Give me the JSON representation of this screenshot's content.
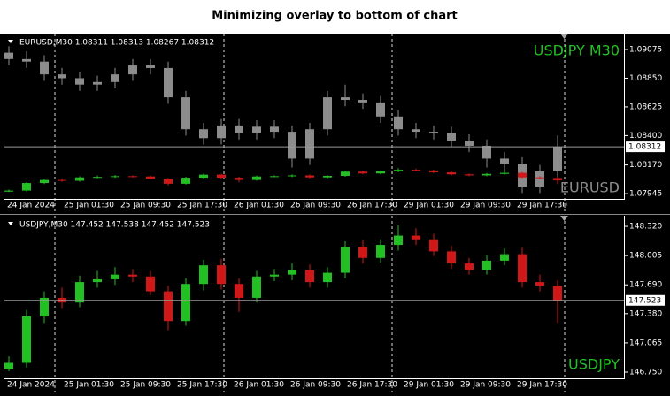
{
  "title": "Minimizing overlay to bottom of chart",
  "chart_data": [
    {
      "type": "candlestick",
      "header": "EURUSD,M30  1.08311 1.08313 1.08267 1.08312",
      "ylim": [
        1.07904,
        1.09172
      ],
      "y2lim": [
        146.3,
        157.0
      ],
      "yticks": [
        1.09075,
        {
          "value": 1.0885,
          "label": "1.08850"
        },
        1.08625,
        {
          "value": 1.084,
          "label": "1.08400"
        },
        {
          "value": 1.0817,
          "label": "1.08170"
        },
        1.07945
      ],
      "current": 1.08312,
      "dates": [
        "24 Jan 2024",
        "25 Jan 01:30",
        "25 Jan 09:30",
        "25 Jan 17:30",
        "26 Jan 01:30",
        "26 Jan 09:30",
        "26 Jan 17:30",
        "29 Jan 01:30",
        "29 Jan 09:30",
        "29 Jan 17:30"
      ],
      "series": [
        {
          "name": "EURUSD",
          "color": "#8c8c8c",
          "up_color": "#8c8c8c",
          "down_color": "#8c8c8c",
          "open": [
            1.0905,
            1.09,
            1.0898,
            1.0888,
            1.0885,
            1.088,
            1.0882,
            1.0888,
            1.0895,
            1.0893,
            1.087,
            1.0845,
            1.0838,
            1.0848,
            1.0842,
            1.0847,
            1.0843,
            1.0822,
            1.0845,
            1.087,
            1.0868,
            1.0866,
            1.0855,
            1.0845,
            1.0843,
            1.0842,
            1.0836,
            1.0832,
            1.0822,
            1.0818,
            1.08,
            1.0812
          ],
          "high": [
            1.091,
            1.0906,
            1.0903,
            1.0893,
            1.089,
            1.0887,
            1.0893,
            1.09,
            1.09,
            1.0898,
            1.0875,
            1.085,
            1.0853,
            1.0853,
            1.0852,
            1.0852,
            1.0848,
            1.085,
            1.0875,
            1.088,
            1.0873,
            1.0871,
            1.086,
            1.085,
            1.0848,
            1.0847,
            1.0841,
            1.0837,
            1.0827,
            1.0823,
            1.0817,
            1.084
          ],
          "low": [
            1.0895,
            1.0893,
            1.0883,
            1.088,
            1.0875,
            1.0875,
            1.0877,
            1.0883,
            1.0888,
            1.0865,
            1.084,
            1.0833,
            1.0833,
            1.0837,
            1.0837,
            1.0838,
            1.0815,
            1.0817,
            1.084,
            1.0863,
            1.0861,
            1.085,
            1.084,
            1.0838,
            1.0837,
            1.0831,
            1.0827,
            1.0815,
            1.081,
            1.0795,
            1.0795,
            1.0807
          ],
          "close": [
            1.09,
            1.0898,
            1.0888,
            1.0885,
            1.088,
            1.0882,
            1.0888,
            1.0895,
            1.0893,
            1.087,
            1.0845,
            1.0838,
            1.0848,
            1.0842,
            1.0847,
            1.0843,
            1.0822,
            1.0845,
            1.087,
            1.0868,
            1.0866,
            1.0855,
            1.0845,
            1.0843,
            1.0842,
            1.0836,
            1.0832,
            1.0822,
            1.0818,
            1.08,
            1.0812,
            1.08312
          ]
        },
        {
          "name": "USDJPY M30",
          "axis": "y2",
          "color": "#22c022",
          "up_color": "#22c022",
          "down_color": "#d01818",
          "open": [
            146.78,
            146.85,
            147.35,
            147.55,
            147.5,
            147.72,
            147.75,
            147.8,
            147.78,
            147.62,
            147.3,
            147.7,
            147.9,
            147.7,
            147.55,
            147.78,
            147.8,
            147.85,
            147.72,
            147.82,
            148.1,
            147.98,
            148.12,
            148.22,
            148.18,
            148.05,
            147.92,
            147.85,
            147.95,
            148.02,
            147.72,
            147.68
          ],
          "high": [
            146.92,
            147.42,
            147.62,
            147.66,
            147.79,
            147.84,
            147.88,
            147.86,
            147.84,
            147.68,
            147.76,
            147.96,
            147.97,
            147.76,
            147.84,
            147.86,
            147.92,
            147.91,
            147.88,
            148.16,
            148.17,
            148.18,
            148.33,
            148.3,
            148.24,
            148.11,
            147.98,
            148.01,
            148.08,
            148.09,
            147.8,
            147.74
          ],
          "low": [
            146.76,
            146.8,
            147.28,
            147.43,
            147.45,
            147.66,
            147.69,
            147.72,
            147.58,
            147.2,
            147.25,
            147.63,
            147.64,
            147.4,
            147.5,
            147.73,
            147.74,
            147.66,
            147.66,
            147.76,
            147.92,
            147.93,
            148.06,
            148.12,
            148.0,
            147.86,
            147.8,
            147.8,
            147.9,
            147.66,
            147.62,
            147.28
          ],
          "close": [
            146.85,
            147.35,
            147.55,
            147.5,
            147.72,
            147.75,
            147.8,
            147.78,
            147.62,
            147.3,
            147.7,
            147.9,
            147.7,
            147.55,
            147.78,
            147.8,
            147.85,
            147.72,
            147.82,
            148.1,
            147.98,
            148.12,
            148.22,
            148.18,
            148.05,
            147.92,
            147.85,
            147.95,
            148.02,
            147.72,
            147.68,
            147.523
          ]
        }
      ]
    },
    {
      "type": "candlestick",
      "header": "USDJPY,M30  147.452 147.538 147.452 147.523",
      "ylim": [
        146.712,
        148.425
      ],
      "yticks": [
        {
          "value": 148.32,
          "label": "148.320"
        },
        148.005,
        {
          "value": 147.69,
          "label": "147.690"
        },
        {
          "value": 147.38,
          "label": "147.380"
        },
        147.065,
        {
          "value": 146.75,
          "label": "146.750"
        }
      ],
      "current": 147.523,
      "dates": [
        "24 Jan 2024",
        "25 Jan 01:30",
        "25 Jan 09:30",
        "25 Jan 17:30",
        "26 Jan 01:30",
        "26 Jan 09:30",
        "26 Jan 17:30",
        "29 Jan 01:30",
        "29 Jan 09:30",
        "29 Jan 17:30"
      ],
      "series": [
        {
          "name": "USDJPY",
          "color": "#22c022",
          "up_color": "#22c022",
          "down_color": "#d01818",
          "open": [
            146.78,
            146.85,
            147.35,
            147.55,
            147.5,
            147.72,
            147.75,
            147.8,
            147.78,
            147.62,
            147.3,
            147.7,
            147.9,
            147.7,
            147.55,
            147.78,
            147.8,
            147.85,
            147.72,
            147.82,
            148.1,
            147.98,
            148.12,
            148.22,
            148.18,
            148.05,
            147.92,
            147.85,
            147.95,
            148.02,
            147.72,
            147.68
          ],
          "high": [
            146.92,
            147.42,
            147.62,
            147.66,
            147.79,
            147.84,
            147.88,
            147.86,
            147.84,
            147.68,
            147.76,
            147.96,
            147.97,
            147.76,
            147.84,
            147.86,
            147.92,
            147.91,
            147.88,
            148.16,
            148.17,
            148.18,
            148.33,
            148.3,
            148.24,
            148.11,
            147.98,
            148.01,
            148.08,
            148.09,
            147.8,
            147.74
          ],
          "low": [
            146.76,
            146.8,
            147.28,
            147.43,
            147.45,
            147.66,
            147.69,
            147.72,
            147.58,
            147.2,
            147.25,
            147.63,
            147.64,
            147.4,
            147.5,
            147.73,
            147.74,
            147.66,
            147.66,
            147.76,
            147.92,
            147.93,
            148.06,
            148.12,
            148.0,
            147.86,
            147.8,
            147.8,
            147.9,
            147.66,
            147.62,
            147.28
          ],
          "close": [
            146.85,
            147.35,
            147.55,
            147.5,
            147.72,
            147.75,
            147.8,
            147.78,
            147.62,
            147.3,
            147.7,
            147.9,
            147.7,
            147.55,
            147.78,
            147.8,
            147.85,
            147.72,
            147.82,
            148.1,
            147.98,
            148.12,
            148.22,
            148.18,
            148.05,
            147.92,
            147.85,
            147.95,
            148.02,
            147.72,
            147.68,
            147.523
          ]
        }
      ]
    }
  ]
}
